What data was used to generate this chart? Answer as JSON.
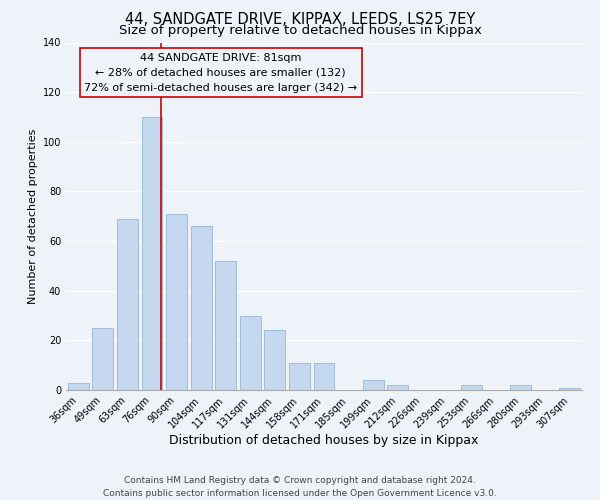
{
  "title": "44, SANDGATE DRIVE, KIPPAX, LEEDS, LS25 7EY",
  "subtitle": "Size of property relative to detached houses in Kippax",
  "xlabel": "Distribution of detached houses by size in Kippax",
  "ylabel": "Number of detached properties",
  "bar_color": "#c5d8f0",
  "bar_edgecolor": "#a0bcd8",
  "categories": [
    "36sqm",
    "49sqm",
    "63sqm",
    "76sqm",
    "90sqm",
    "104sqm",
    "117sqm",
    "131sqm",
    "144sqm",
    "158sqm",
    "171sqm",
    "185sqm",
    "199sqm",
    "212sqm",
    "226sqm",
    "239sqm",
    "253sqm",
    "266sqm",
    "280sqm",
    "293sqm",
    "307sqm"
  ],
  "values": [
    3,
    25,
    69,
    110,
    71,
    66,
    52,
    30,
    24,
    11,
    11,
    0,
    4,
    2,
    0,
    0,
    2,
    0,
    2,
    0,
    1
  ],
  "ylim": [
    0,
    140
  ],
  "yticks": [
    0,
    20,
    40,
    60,
    80,
    100,
    120,
    140
  ],
  "vline_color": "#cc0000",
  "annotation_box_edgecolor": "#cc0000",
  "marker_label_line1": "44 SANDGATE DRIVE: 81sqm",
  "marker_label_line2": "← 28% of detached houses are smaller (132)",
  "marker_label_line3": "72% of semi-detached houses are larger (342) →",
  "footer_line1": "Contains HM Land Registry data © Crown copyright and database right 2024.",
  "footer_line2": "Contains public sector information licensed under the Open Government Licence v3.0.",
  "background_color": "#eef2f9",
  "title_fontsize": 10.5,
  "subtitle_fontsize": 9.5,
  "xlabel_fontsize": 9,
  "ylabel_fontsize": 8,
  "tick_fontsize": 7,
  "annotation_fontsize": 8,
  "footer_fontsize": 6.5
}
